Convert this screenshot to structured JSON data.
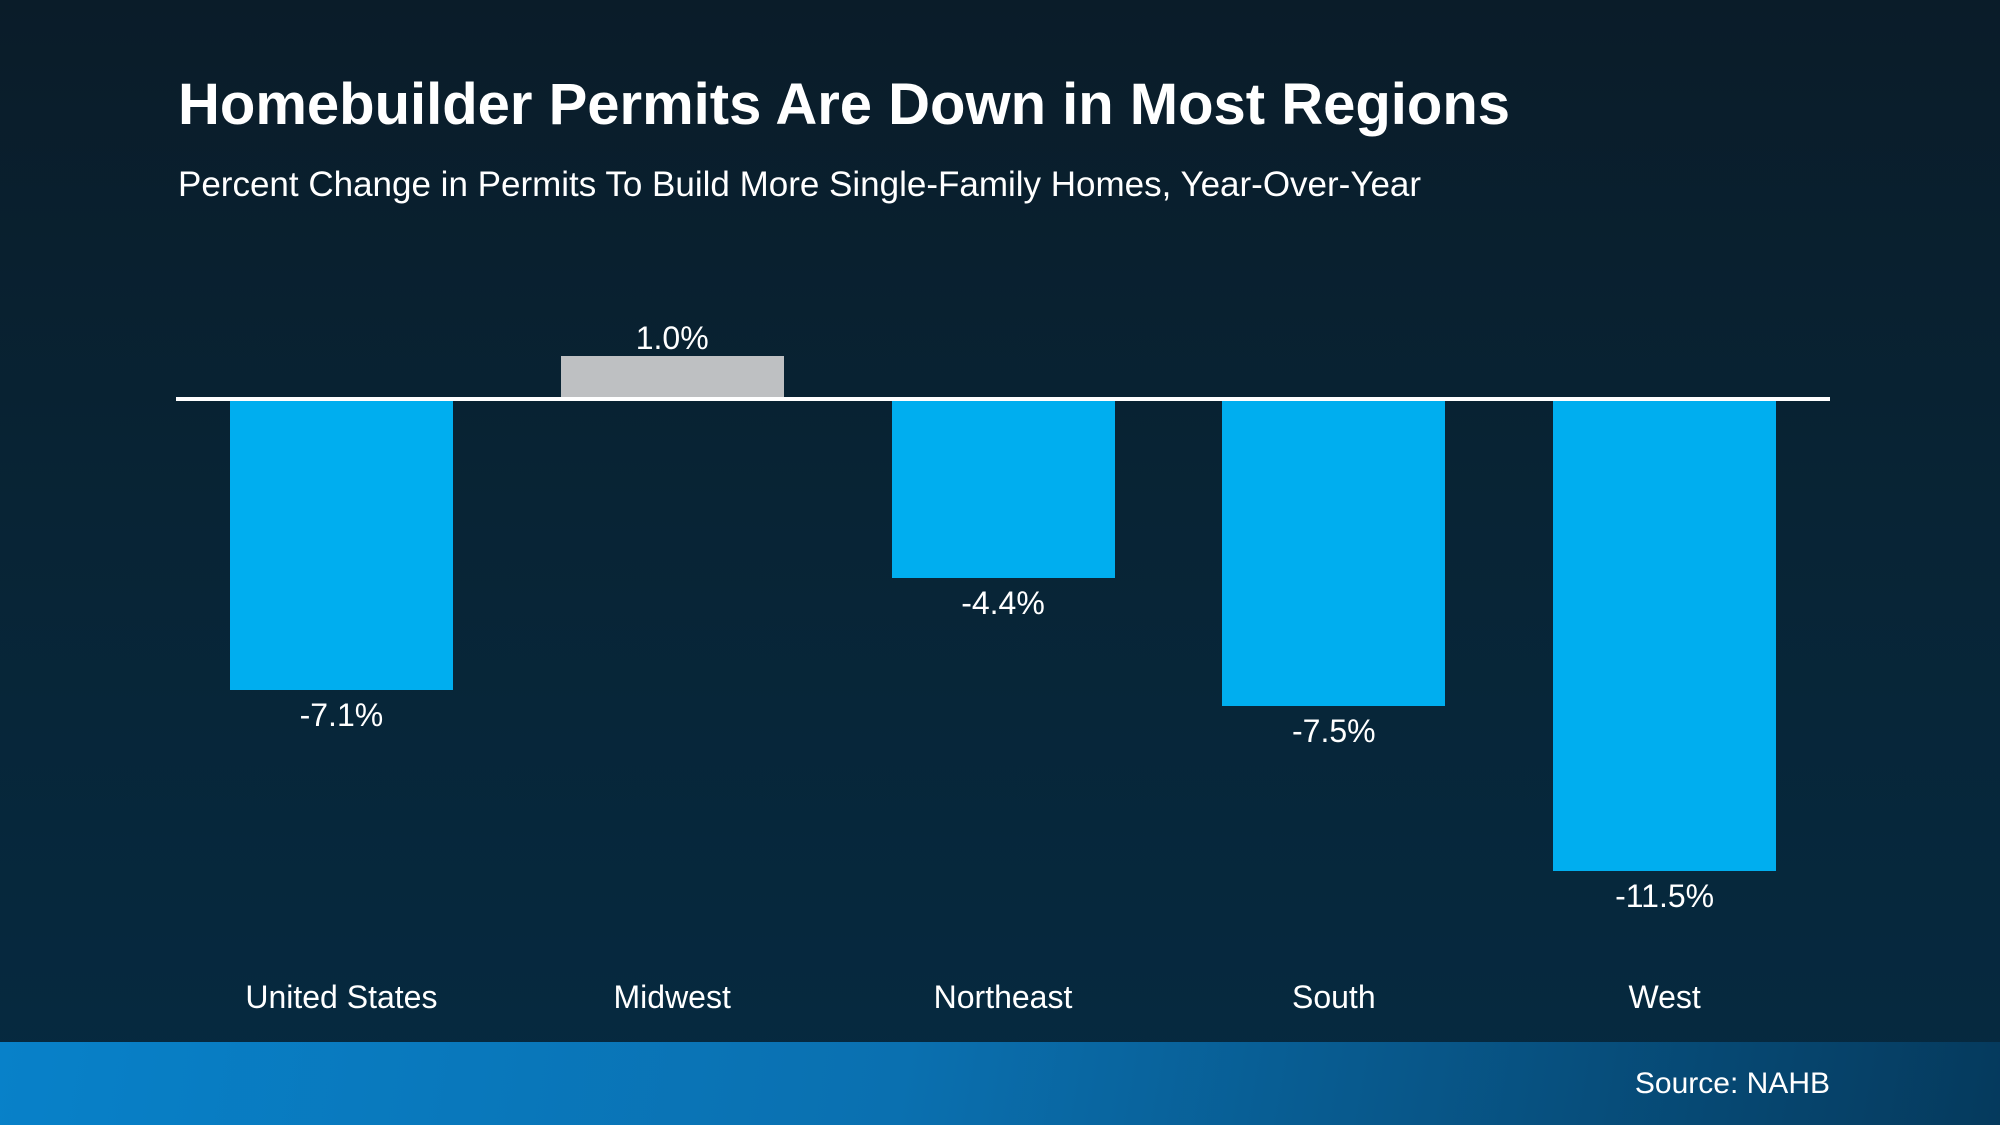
{
  "header": {
    "title": "Homebuilder Permits Are Down in Most Regions",
    "subtitle": "Percent Change in Permits To Build More Single-Family Homes, Year-Over-Year"
  },
  "footer": {
    "source": "Source: NAHB"
  },
  "colors": {
    "bar_negative": "#00AEEF",
    "bar_positive": "#BEC0C2",
    "text": "#FFFFFF",
    "zero_line": "#FFFFFF",
    "background_top": "#0A1C29",
    "background_bottom": "#052A41",
    "footer_gradient_left": "#0881C9",
    "footer_gradient_right": "#053A5D"
  },
  "chart_data": {
    "type": "bar",
    "title": "Homebuilder Permits Are Down in Most Regions",
    "subtitle": "Percent Change in Permits To Build More Single-Family Homes, Year-Over-Year",
    "categories": [
      "United States",
      "Midwest",
      "Northeast",
      "South",
      "West"
    ],
    "values": [
      -7.1,
      1.0,
      -4.4,
      -7.5,
      -11.5
    ],
    "value_labels": [
      "-7.1%",
      "1.0%",
      "-4.4%",
      "-7.5%",
      "-11.5%"
    ],
    "bar_colors": [
      "#00AEEF",
      "#BEC0C2",
      "#00AEEF",
      "#00AEEF",
      "#00AEEF"
    ],
    "xlabel": "",
    "ylabel": "",
    "ylim": [
      -12,
      2
    ],
    "grid": false,
    "legend": "none",
    "orientation": "vertical",
    "baseline": 0,
    "annotation_source": "Source: NAHB"
  }
}
